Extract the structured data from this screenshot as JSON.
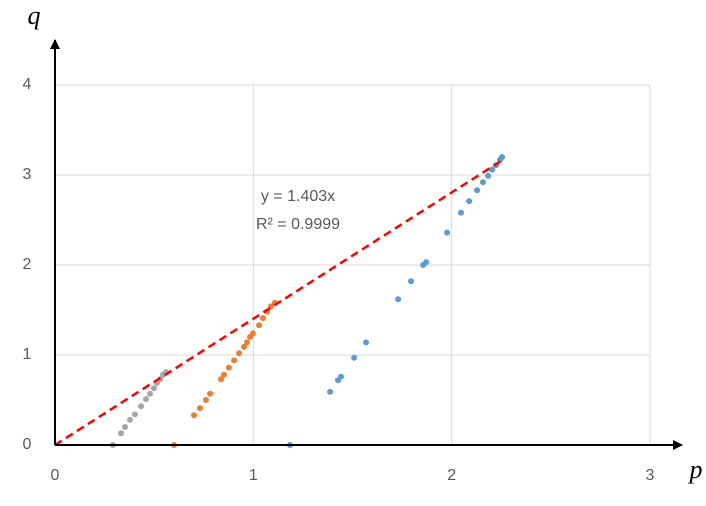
{
  "chart_data": {
    "type": "scatter",
    "x_label": "p",
    "y_label": "q",
    "xlim": [
      0,
      3
    ],
    "ylim": [
      0,
      4
    ],
    "xticks": [
      0,
      1,
      2,
      3
    ],
    "yticks": [
      0,
      1,
      2,
      3,
      4
    ],
    "grid": true,
    "series": [
      {
        "color": "#5b9bd5",
        "x": [
          1.185,
          1.387,
          1.427,
          1.442,
          1.508,
          1.568,
          1.73,
          1.795,
          1.856,
          1.871,
          1.977,
          2.047,
          2.088,
          2.128,
          2.158,
          2.184,
          2.204,
          2.224,
          2.244,
          2.254
        ],
        "values": [
          0,
          0.59,
          0.72,
          0.76,
          0.97,
          1.14,
          1.62,
          1.82,
          2.0,
          2.03,
          2.36,
          2.58,
          2.71,
          2.83,
          2.92,
          2.99,
          3.06,
          3.11,
          3.17,
          3.2
        ]
      },
      {
        "color": "#ed7d31",
        "x": [
          0.6,
          0.701,
          0.731,
          0.761,
          0.782,
          0.837,
          0.852,
          0.877,
          0.903,
          0.928,
          0.953,
          0.968,
          0.983,
          0.998,
          1.029,
          1.049,
          1.069,
          1.089,
          1.109
        ],
        "values": [
          0,
          0.33,
          0.41,
          0.5,
          0.57,
          0.73,
          0.78,
          0.86,
          0.94,
          1.02,
          1.09,
          1.14,
          1.2,
          1.24,
          1.33,
          1.41,
          1.48,
          1.54,
          1.58
        ]
      },
      {
        "color": "#a5a5a5",
        "x": [
          0.292,
          0.333,
          0.353,
          0.378,
          0.403,
          0.434,
          0.459,
          0.479,
          0.499,
          0.514,
          0.53,
          0.545,
          0.56
        ],
        "values": [
          0,
          0.13,
          0.2,
          0.28,
          0.34,
          0.43,
          0.51,
          0.57,
          0.63,
          0.69,
          0.73,
          0.78,
          0.81
        ]
      }
    ],
    "trendline": {
      "slope": 1.403,
      "x": [
        0,
        2.264
      ],
      "color": "#ff0000",
      "equation": "y = 1.403x",
      "r_squared": "R² = 0.9999"
    }
  }
}
